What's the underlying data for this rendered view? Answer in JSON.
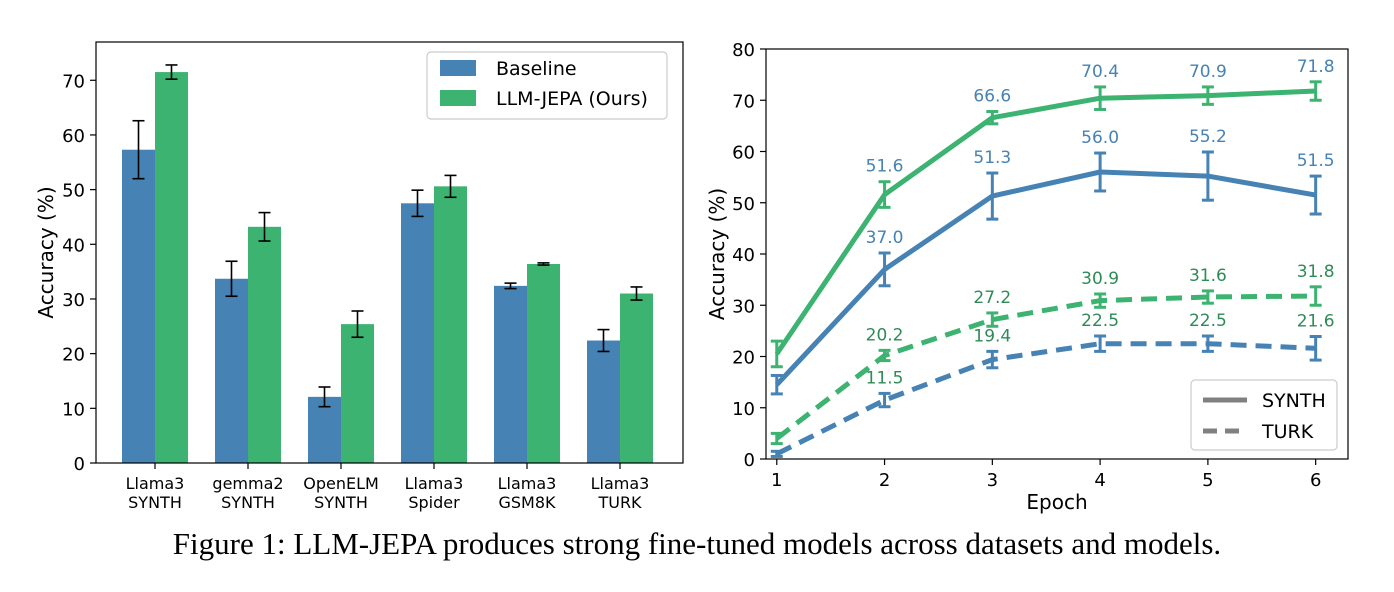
{
  "figure": {
    "caption": "Figure 1: LLM-JEPA produces strong fine-tuned models across datasets and models."
  },
  "colors": {
    "baseline": "#4682b4",
    "jepa": "#3cb371",
    "jepa_text": "#2e8b57"
  },
  "chart_data": [
    {
      "type": "bar",
      "ylabel": "Accuracy (%)",
      "xlabel": "",
      "ylim": [
        0,
        77
      ],
      "yticks": [
        "0",
        "10",
        "20",
        "30",
        "40",
        "50",
        "60",
        "70"
      ],
      "categories": [
        [
          "Llama3",
          "SYNTH"
        ],
        [
          "gemma2",
          "SYNTH"
        ],
        [
          "OpenELM",
          "SYNTH"
        ],
        [
          "Llama3",
          "Spider"
        ],
        [
          "Llama3",
          "GSM8K"
        ],
        [
          "Llama3",
          "TURK"
        ]
      ],
      "legend_position": "top-right",
      "series": [
        {
          "name": "Baseline",
          "color": "#4682b4",
          "values": [
            57.3,
            33.7,
            12.1,
            47.5,
            32.4,
            22.4
          ],
          "errors": [
            5.3,
            3.2,
            1.8,
            2.4,
            0.5,
            2.0
          ]
        },
        {
          "name": "LLM-JEPA (Ours)",
          "color": "#3cb371",
          "values": [
            71.5,
            43.2,
            25.4,
            50.6,
            36.4,
            31.0
          ],
          "errors": [
            1.3,
            2.6,
            2.4,
            2.0,
            0.2,
            1.2
          ]
        }
      ]
    },
    {
      "type": "line",
      "xlabel": "Epoch",
      "ylabel": "Accuracy (%)",
      "xlim": [
        0.9,
        6.3
      ],
      "ylim": [
        0,
        80
      ],
      "x": [
        1,
        2,
        3,
        4,
        5,
        6
      ],
      "xticks": [
        "1",
        "2",
        "3",
        "4",
        "5",
        "6"
      ],
      "yticks": [
        "0",
        "10",
        "20",
        "30",
        "40",
        "50",
        "60",
        "70",
        "80"
      ],
      "legend_position": "bottom-right",
      "legend": [
        {
          "label": "SYNTH",
          "style": "solid"
        },
        {
          "label": "TURK",
          "style": "dashed"
        }
      ],
      "series": [
        {
          "key": "jepa-synth",
          "color": "#3cb371",
          "label_color": "#4682b4",
          "style": "solid",
          "values": [
            20.5,
            51.6,
            66.6,
            70.4,
            70.9,
            71.8
          ],
          "errors": [
            2.5,
            2.5,
            1.2,
            2.2,
            1.7,
            1.8
          ],
          "labels": [
            "",
            "51.6",
            "66.6",
            "70.4",
            "70.9",
            "71.8"
          ]
        },
        {
          "key": "baseline-synth",
          "color": "#4682b4",
          "label_color": "#4682b4",
          "style": "solid",
          "values": [
            14.5,
            37.0,
            51.3,
            56.0,
            55.2,
            51.5
          ],
          "errors": [
            1.8,
            3.2,
            4.5,
            3.7,
            4.7,
            3.7
          ],
          "labels": [
            "",
            "37.0",
            "51.3",
            "56.0",
            "55.2",
            "51.5"
          ]
        },
        {
          "key": "jepa-turk",
          "color": "#3cb371",
          "label_color": "#2e8b57",
          "style": "dashed",
          "values": [
            4.0,
            20.2,
            27.2,
            30.9,
            31.6,
            31.8
          ],
          "errors": [
            1.0,
            1.0,
            1.3,
            1.3,
            1.2,
            1.8
          ],
          "labels": [
            "",
            "20.2",
            "27.2",
            "30.9",
            "31.6",
            "31.8"
          ]
        },
        {
          "key": "baseline-turk",
          "color": "#4682b4",
          "label_color": "#2e8b57",
          "style": "dashed",
          "values": [
            1.0,
            11.5,
            19.4,
            22.5,
            22.5,
            21.6
          ],
          "errors": [
            0.5,
            1.3,
            1.6,
            1.5,
            1.5,
            2.3
          ],
          "labels": [
            "",
            "11.5",
            "19.4",
            "22.5",
            "22.5",
            "21.6"
          ]
        }
      ]
    }
  ]
}
